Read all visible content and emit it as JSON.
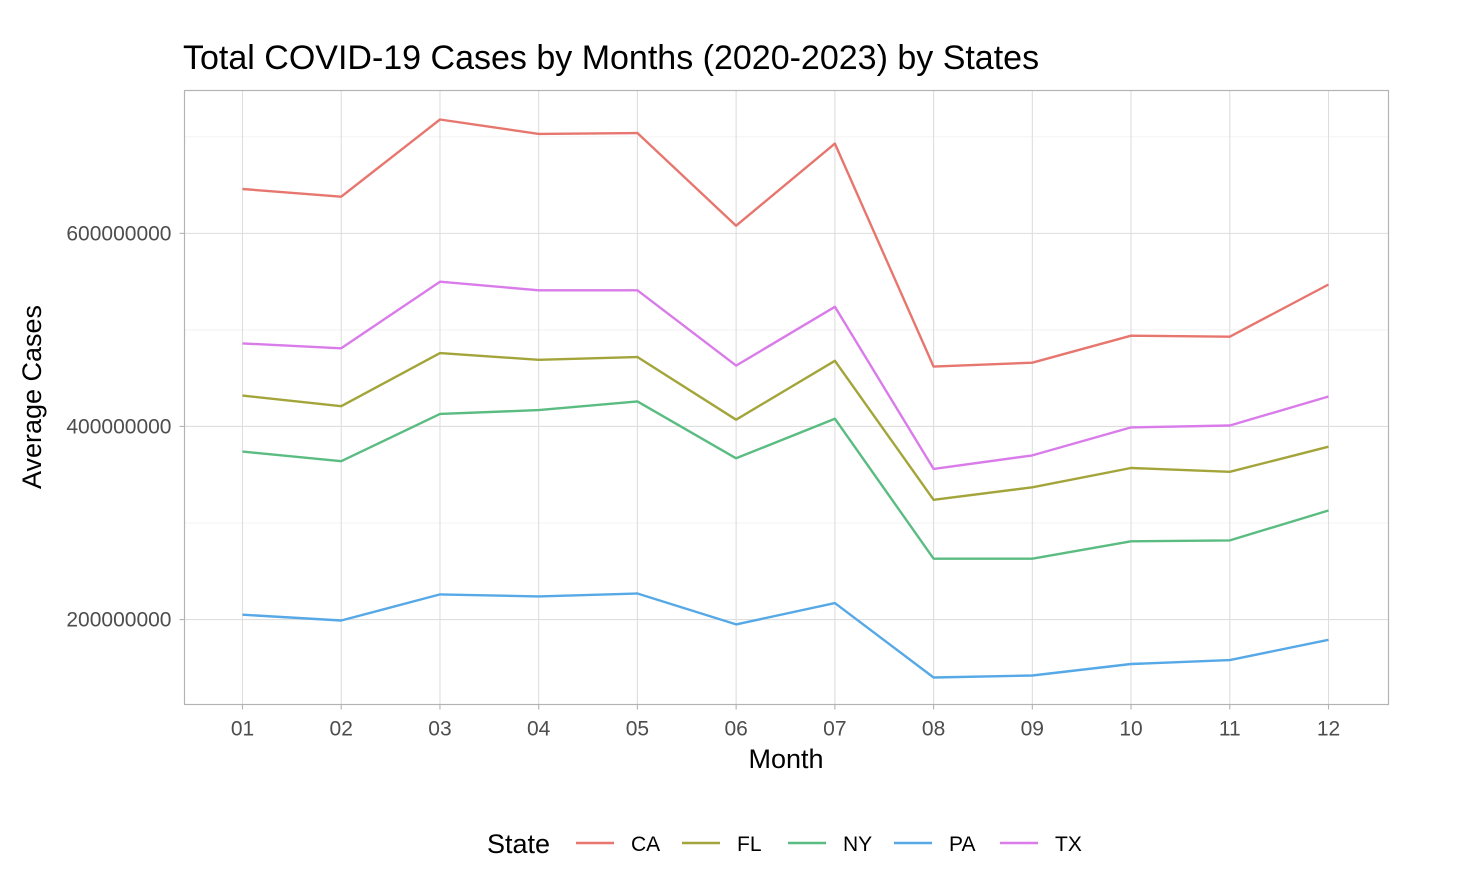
{
  "chart_data": {
    "type": "line",
    "title": "Total COVID-19 Cases by Months (2020-2023) by States",
    "xlabel": "Month",
    "ylabel": "Average Cases",
    "categories": [
      "01",
      "02",
      "03",
      "04",
      "05",
      "06",
      "07",
      "08",
      "09",
      "10",
      "11",
      "12"
    ],
    "y_ticks": [
      200000000,
      400000000,
      600000000
    ],
    "y_tick_labels": [
      "200000000",
      "400000000",
      "600000000"
    ],
    "ylim": [
      112000000,
      748000000
    ],
    "grid": true,
    "legend": {
      "title": "State",
      "position": "bottom"
    },
    "series": [
      {
        "name": "CA",
        "color": "#E7766F",
        "values": [
          646000000,
          638000000,
          718000000,
          703000000,
          704000000,
          608000000,
          693000000,
          462000000,
          466000000,
          494000000,
          493000000,
          547000000
        ]
      },
      {
        "name": "FL",
        "color": "#A3A53A",
        "values": [
          432000000,
          421000000,
          476000000,
          469000000,
          472000000,
          407000000,
          468000000,
          324000000,
          337000000,
          357000000,
          353000000,
          379000000
        ]
      },
      {
        "name": "NY",
        "color": "#5BBC82",
        "values": [
          374000000,
          364000000,
          413000000,
          417000000,
          426000000,
          367000000,
          408000000,
          263000000,
          263000000,
          281000000,
          282000000,
          313000000
        ]
      },
      {
        "name": "PA",
        "color": "#56A9E6",
        "values": [
          205000000,
          199000000,
          226000000,
          224000000,
          227000000,
          195000000,
          217000000,
          140000000,
          142000000,
          154000000,
          158000000,
          179000000
        ]
      },
      {
        "name": "TX",
        "color": "#D97CEA",
        "values": [
          486000000,
          481000000,
          550000000,
          541000000,
          541000000,
          463000000,
          524000000,
          356000000,
          370000000,
          399000000,
          401000000,
          431000000
        ]
      }
    ]
  }
}
